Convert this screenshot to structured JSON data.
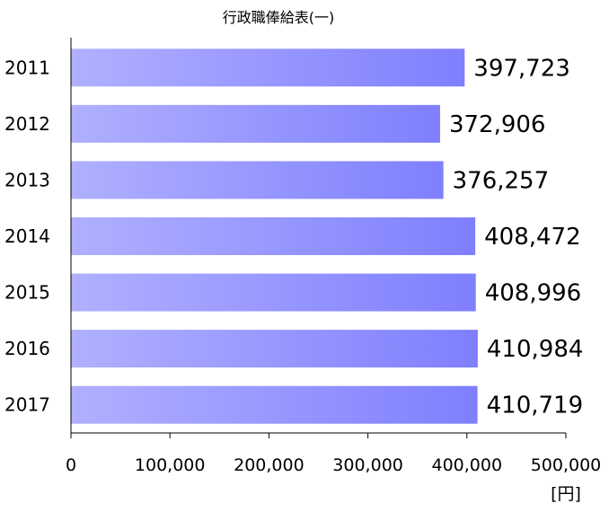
{
  "chart_data": {
    "type": "bar",
    "orientation": "horizontal",
    "title": "行政職俸給表(一)",
    "categories": [
      "2011",
      "2012",
      "2013",
      "2014",
      "2015",
      "2016",
      "2017"
    ],
    "values": [
      397723,
      372906,
      376257,
      408472,
      408996,
      410984,
      410719
    ],
    "value_labels": [
      "397,723",
      "372,906",
      "376,257",
      "408,472",
      "408,996",
      "410,984",
      "410,719"
    ],
    "x_ticks": [
      0,
      100000,
      200000,
      300000,
      400000,
      500000
    ],
    "x_tick_labels": [
      "0",
      "100,000",
      "200,000",
      "300,000",
      "400,000",
      "500,000"
    ],
    "xlim": [
      0,
      500000
    ],
    "unit_label": "[円]",
    "grid": false,
    "legend": "none",
    "colors": {
      "bar_start": "#b0b0ff",
      "bar_end": "#7f7fff",
      "axis": "#000000"
    }
  }
}
